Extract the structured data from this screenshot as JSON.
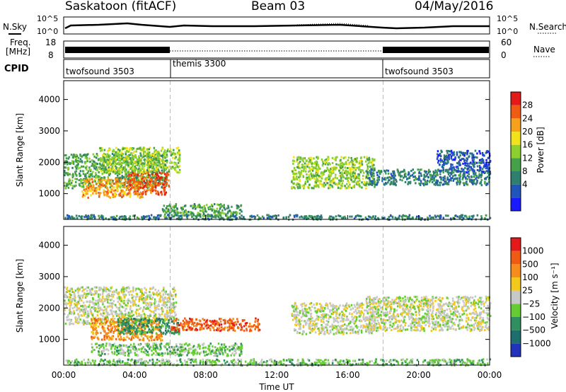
{
  "header": {
    "station": "Saskatoon (fitACF)",
    "beam": "Beam 03",
    "date": "04/May/2016"
  },
  "top_panels": {
    "nsky_label": "N.Sky",
    "nsky_ticks": [
      "10^5",
      "10^0"
    ],
    "nsearch_label": "N.Search",
    "nsearch_ticks": [
      "10^5",
      "10^0"
    ],
    "freq_label_line1": "Freq.",
    "freq_label_line2": "[MHz]",
    "freq_ticks": [
      "18",
      "8"
    ],
    "nave_label": "Nave",
    "nave_ticks": [
      "60",
      "0"
    ],
    "cpid_label": "CPID",
    "cpid_segments": [
      {
        "name": "twofsound 3503",
        "start_h": 0,
        "end_h": 6
      },
      {
        "name": "themis 3300",
        "start_h": 6,
        "end_h": 18
      },
      {
        "name": "twofsound 3503",
        "start_h": 18,
        "end_h": 24
      }
    ]
  },
  "chart_data": [
    {
      "type": "heatmap",
      "title": "",
      "xlabel": "",
      "ylabel": "Slant Range [km]",
      "xlim": [
        0,
        24
      ],
      "ylim": [
        180,
        4600
      ],
      "yticks": [
        "1000",
        "2000",
        "3000",
        "4000"
      ],
      "colorbar_label": "Power [dB]",
      "colorbar_ticks": [
        "28",
        "24",
        "20",
        "16",
        "12",
        "8",
        "4"
      ],
      "colors": [
        "#1a1aff",
        "#2255bb",
        "#2f7f6f",
        "#46a04a",
        "#8ccf2e",
        "#f2e21c",
        "#f5a11c",
        "#ef5b12",
        "#e41a1a"
      ],
      "regions": [
        {
          "t0": 0.0,
          "t1": 5.8,
          "r0": 1200,
          "r1": 2300,
          "level": 3
        },
        {
          "t0": 1.0,
          "t1": 4.5,
          "r0": 900,
          "r1": 1500,
          "level": 6
        },
        {
          "t0": 3.5,
          "t1": 5.9,
          "r0": 1000,
          "r1": 1700,
          "level": 7
        },
        {
          "t0": 2.0,
          "t1": 6.5,
          "r0": 1700,
          "r1": 2500,
          "level": 4
        },
        {
          "t0": 5.5,
          "t1": 10.0,
          "r0": 300,
          "r1": 700,
          "level": 3
        },
        {
          "t0": 12.8,
          "t1": 17.5,
          "r0": 1200,
          "r1": 2200,
          "level": 4
        },
        {
          "t0": 17.0,
          "t1": 24.0,
          "r0": 1300,
          "r1": 1800,
          "level": 2
        },
        {
          "t0": 21.0,
          "t1": 24.0,
          "r0": 1700,
          "r1": 2400,
          "level": 1
        },
        {
          "t0": 0.0,
          "t1": 24.0,
          "r0": 200,
          "r1": 350,
          "level": 2
        }
      ]
    },
    {
      "type": "heatmap",
      "title": "",
      "xlabel": "Time UT",
      "ylabel": "Slant Range [km]",
      "xlim": [
        0,
        24
      ],
      "ylim": [
        180,
        4600
      ],
      "xticks": [
        "00:00",
        "04:00",
        "08:00",
        "12:00",
        "16:00",
        "20:00",
        "00:00"
      ],
      "yticks": [
        "1000",
        "2000",
        "3000",
        "4000"
      ],
      "colorbar_label": "Velocity [m s⁻¹]",
      "colorbar_ticks": [
        "1000",
        "500",
        "100",
        "25",
        "−25",
        "−100",
        "−500",
        "−1000"
      ],
      "colors": [
        "#2233bb",
        "#1e6e6e",
        "#2f8f5f",
        "#66cc33",
        "#c8c8c8",
        "#f2c81c",
        "#f58c1c",
        "#ef5b12",
        "#e41a1a"
      ],
      "regions": [
        {
          "t0": 0.0,
          "t1": 6.3,
          "r0": 1500,
          "r1": 2700,
          "level": 4
        },
        {
          "t0": 1.5,
          "t1": 5.5,
          "r0": 1000,
          "r1": 1700,
          "level": 6
        },
        {
          "t0": 3.0,
          "t1": 6.5,
          "r0": 1200,
          "r1": 1700,
          "level": 2
        },
        {
          "t0": 1.5,
          "t1": 10.0,
          "r0": 500,
          "r1": 900,
          "level": 3
        },
        {
          "t0": 6.0,
          "t1": 11.0,
          "r0": 1300,
          "r1": 1700,
          "level": 7
        },
        {
          "t0": 12.8,
          "t1": 17.5,
          "r0": 1200,
          "r1": 2200,
          "level": 4
        },
        {
          "t0": 17.0,
          "t1": 24.0,
          "r0": 1300,
          "r1": 2400,
          "level": 4
        },
        {
          "t0": 0.0,
          "t1": 24.0,
          "r0": 200,
          "r1": 400,
          "level": 3
        }
      ]
    }
  ]
}
